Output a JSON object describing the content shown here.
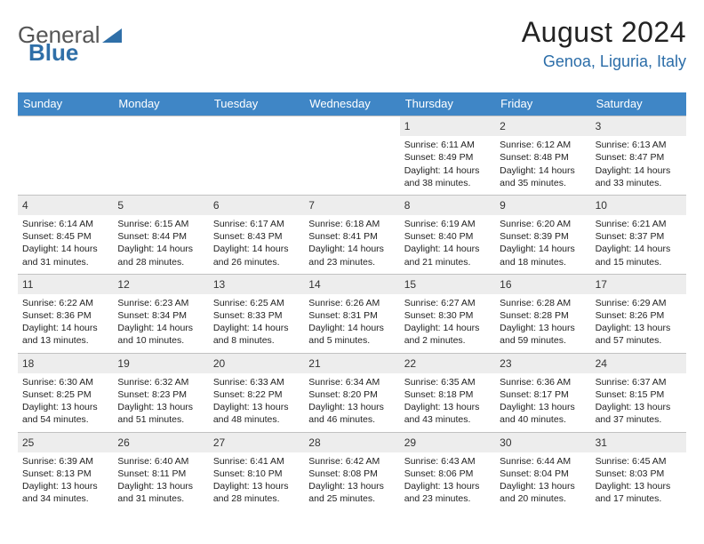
{
  "brand": {
    "part1": "General",
    "part2": "Blue"
  },
  "title": "August 2024",
  "location": "Genoa, Liguria, Italy",
  "colors": {
    "header_bg": "#3f86c6",
    "header_text": "#ffffff",
    "location_text": "#2b6da8",
    "daynum_bg": "#ededed",
    "border": "#c2c2c2",
    "logo_blue": "#2f6fa8"
  },
  "weekdays": [
    "Sunday",
    "Monday",
    "Tuesday",
    "Wednesday",
    "Thursday",
    "Friday",
    "Saturday"
  ],
  "weeks": [
    [
      null,
      null,
      null,
      null,
      {
        "n": "1",
        "sr": "Sunrise: 6:11 AM",
        "ss": "Sunset: 8:49 PM",
        "d1": "Daylight: 14 hours",
        "d2": "and 38 minutes."
      },
      {
        "n": "2",
        "sr": "Sunrise: 6:12 AM",
        "ss": "Sunset: 8:48 PM",
        "d1": "Daylight: 14 hours",
        "d2": "and 35 minutes."
      },
      {
        "n": "3",
        "sr": "Sunrise: 6:13 AM",
        "ss": "Sunset: 8:47 PM",
        "d1": "Daylight: 14 hours",
        "d2": "and 33 minutes."
      }
    ],
    [
      {
        "n": "4",
        "sr": "Sunrise: 6:14 AM",
        "ss": "Sunset: 8:45 PM",
        "d1": "Daylight: 14 hours",
        "d2": "and 31 minutes."
      },
      {
        "n": "5",
        "sr": "Sunrise: 6:15 AM",
        "ss": "Sunset: 8:44 PM",
        "d1": "Daylight: 14 hours",
        "d2": "and 28 minutes."
      },
      {
        "n": "6",
        "sr": "Sunrise: 6:17 AM",
        "ss": "Sunset: 8:43 PM",
        "d1": "Daylight: 14 hours",
        "d2": "and 26 minutes."
      },
      {
        "n": "7",
        "sr": "Sunrise: 6:18 AM",
        "ss": "Sunset: 8:41 PM",
        "d1": "Daylight: 14 hours",
        "d2": "and 23 minutes."
      },
      {
        "n": "8",
        "sr": "Sunrise: 6:19 AM",
        "ss": "Sunset: 8:40 PM",
        "d1": "Daylight: 14 hours",
        "d2": "and 21 minutes."
      },
      {
        "n": "9",
        "sr": "Sunrise: 6:20 AM",
        "ss": "Sunset: 8:39 PM",
        "d1": "Daylight: 14 hours",
        "d2": "and 18 minutes."
      },
      {
        "n": "10",
        "sr": "Sunrise: 6:21 AM",
        "ss": "Sunset: 8:37 PM",
        "d1": "Daylight: 14 hours",
        "d2": "and 15 minutes."
      }
    ],
    [
      {
        "n": "11",
        "sr": "Sunrise: 6:22 AM",
        "ss": "Sunset: 8:36 PM",
        "d1": "Daylight: 14 hours",
        "d2": "and 13 minutes."
      },
      {
        "n": "12",
        "sr": "Sunrise: 6:23 AM",
        "ss": "Sunset: 8:34 PM",
        "d1": "Daylight: 14 hours",
        "d2": "and 10 minutes."
      },
      {
        "n": "13",
        "sr": "Sunrise: 6:25 AM",
        "ss": "Sunset: 8:33 PM",
        "d1": "Daylight: 14 hours",
        "d2": "and 8 minutes."
      },
      {
        "n": "14",
        "sr": "Sunrise: 6:26 AM",
        "ss": "Sunset: 8:31 PM",
        "d1": "Daylight: 14 hours",
        "d2": "and 5 minutes."
      },
      {
        "n": "15",
        "sr": "Sunrise: 6:27 AM",
        "ss": "Sunset: 8:30 PM",
        "d1": "Daylight: 14 hours",
        "d2": "and 2 minutes."
      },
      {
        "n": "16",
        "sr": "Sunrise: 6:28 AM",
        "ss": "Sunset: 8:28 PM",
        "d1": "Daylight: 13 hours",
        "d2": "and 59 minutes."
      },
      {
        "n": "17",
        "sr": "Sunrise: 6:29 AM",
        "ss": "Sunset: 8:26 PM",
        "d1": "Daylight: 13 hours",
        "d2": "and 57 minutes."
      }
    ],
    [
      {
        "n": "18",
        "sr": "Sunrise: 6:30 AM",
        "ss": "Sunset: 8:25 PM",
        "d1": "Daylight: 13 hours",
        "d2": "and 54 minutes."
      },
      {
        "n": "19",
        "sr": "Sunrise: 6:32 AM",
        "ss": "Sunset: 8:23 PM",
        "d1": "Daylight: 13 hours",
        "d2": "and 51 minutes."
      },
      {
        "n": "20",
        "sr": "Sunrise: 6:33 AM",
        "ss": "Sunset: 8:22 PM",
        "d1": "Daylight: 13 hours",
        "d2": "and 48 minutes."
      },
      {
        "n": "21",
        "sr": "Sunrise: 6:34 AM",
        "ss": "Sunset: 8:20 PM",
        "d1": "Daylight: 13 hours",
        "d2": "and 46 minutes."
      },
      {
        "n": "22",
        "sr": "Sunrise: 6:35 AM",
        "ss": "Sunset: 8:18 PM",
        "d1": "Daylight: 13 hours",
        "d2": "and 43 minutes."
      },
      {
        "n": "23",
        "sr": "Sunrise: 6:36 AM",
        "ss": "Sunset: 8:17 PM",
        "d1": "Daylight: 13 hours",
        "d2": "and 40 minutes."
      },
      {
        "n": "24",
        "sr": "Sunrise: 6:37 AM",
        "ss": "Sunset: 8:15 PM",
        "d1": "Daylight: 13 hours",
        "d2": "and 37 minutes."
      }
    ],
    [
      {
        "n": "25",
        "sr": "Sunrise: 6:39 AM",
        "ss": "Sunset: 8:13 PM",
        "d1": "Daylight: 13 hours",
        "d2": "and 34 minutes."
      },
      {
        "n": "26",
        "sr": "Sunrise: 6:40 AM",
        "ss": "Sunset: 8:11 PM",
        "d1": "Daylight: 13 hours",
        "d2": "and 31 minutes."
      },
      {
        "n": "27",
        "sr": "Sunrise: 6:41 AM",
        "ss": "Sunset: 8:10 PM",
        "d1": "Daylight: 13 hours",
        "d2": "and 28 minutes."
      },
      {
        "n": "28",
        "sr": "Sunrise: 6:42 AM",
        "ss": "Sunset: 8:08 PM",
        "d1": "Daylight: 13 hours",
        "d2": "and 25 minutes."
      },
      {
        "n": "29",
        "sr": "Sunrise: 6:43 AM",
        "ss": "Sunset: 8:06 PM",
        "d1": "Daylight: 13 hours",
        "d2": "and 23 minutes."
      },
      {
        "n": "30",
        "sr": "Sunrise: 6:44 AM",
        "ss": "Sunset: 8:04 PM",
        "d1": "Daylight: 13 hours",
        "d2": "and 20 minutes."
      },
      {
        "n": "31",
        "sr": "Sunrise: 6:45 AM",
        "ss": "Sunset: 8:03 PM",
        "d1": "Daylight: 13 hours",
        "d2": "and 17 minutes."
      }
    ]
  ]
}
